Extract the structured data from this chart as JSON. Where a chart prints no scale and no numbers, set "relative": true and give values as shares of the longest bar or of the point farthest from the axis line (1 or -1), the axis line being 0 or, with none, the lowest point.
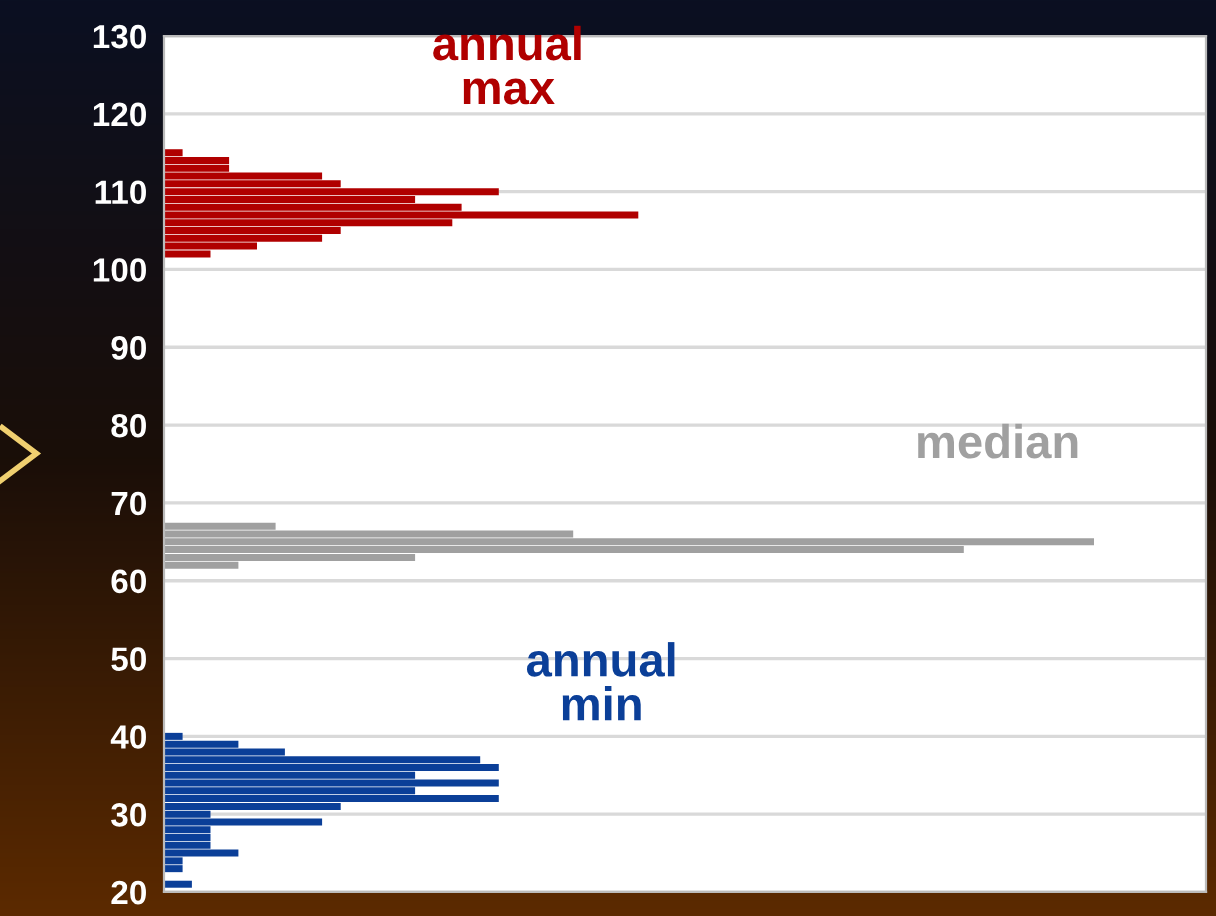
{
  "chart_data": {
    "type": "bar",
    "orientation": "horizontal",
    "relative": true,
    "series": [
      {
        "name": "annual\nmax",
        "color": "#b00000",
        "x": [
          102,
          103,
          104,
          105,
          106,
          107,
          108,
          109,
          110,
          111,
          112,
          113,
          114,
          115
        ],
        "values": [
          0.05,
          0.1,
          0.17,
          0.19,
          0.31,
          0.51,
          0.32,
          0.27,
          0.36,
          0.19,
          0.17,
          0.07,
          0.07,
          0.02
        ]
      },
      {
        "name": "median",
        "color": "#a0a0a0",
        "x": [
          62,
          63,
          64,
          65,
          66,
          67
        ],
        "values": [
          0.08,
          0.27,
          0.86,
          1,
          0.44,
          0.12
        ]
      },
      {
        "name": "annual\nmin",
        "color": "#0b3f98",
        "x": [
          21,
          22,
          23,
          24,
          25,
          26,
          27,
          28,
          29,
          30,
          31,
          32,
          33,
          34,
          35,
          36,
          37,
          38,
          39,
          40
        ],
        "values": [
          0.03,
          0,
          0.02,
          0.02,
          0.08,
          0.05,
          0.05,
          0.05,
          0.17,
          0.05,
          0.19,
          0.36,
          0.27,
          0.36,
          0.27,
          0.36,
          0.34,
          0.13,
          0.08,
          0.02
        ]
      }
    ],
    "ylim": [
      20,
      130
    ],
    "yticks": [
      20,
      30,
      40,
      50,
      60,
      70,
      80,
      90,
      100,
      110,
      120,
      130
    ],
    "grid": "y",
    "legend": false
  }
}
